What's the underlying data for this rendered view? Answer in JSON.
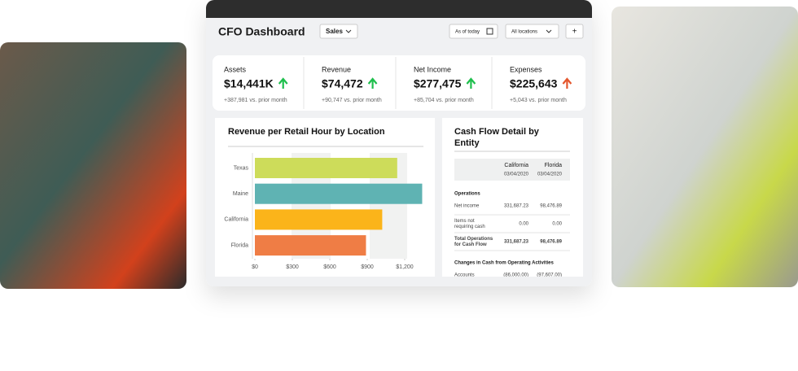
{
  "header": {
    "title": "CFO Dashboard",
    "filter": "Sales",
    "date": "As of today",
    "locations": "All locations",
    "add": "+"
  },
  "kpis": [
    {
      "label": "Assets",
      "value": "$14,441K",
      "change": "+387,981 vs. prior month"
    },
    {
      "label": "Revenue",
      "value": "$74,472",
      "change": "+90,747 vs. prior month"
    },
    {
      "label": "Net Income",
      "value": "$277,475",
      "change": "+85,704 vs. prior month"
    },
    {
      "label": "Expenses",
      "value": "$225,643",
      "change": "+5,043 vs. prior month"
    }
  ],
  "chart_data": {
    "type": "hbar",
    "title": "Revenue per Retail Hour by Location",
    "categories": [
      "Texas",
      "Maine",
      "California",
      "Florida"
    ],
    "values": [
      1140,
      1340,
      1020,
      890
    ],
    "colors": [
      "#cddc5a",
      "#5fb3b3",
      "#fbb41a",
      "#ef7d45"
    ],
    "xlim": [
      0,
      1350
    ],
    "xticks": [
      {
        "value": 0,
        "label": "$0"
      },
      {
        "value": 300,
        "label": "$300"
      },
      {
        "value": 600,
        "label": "$600"
      },
      {
        "value": 900,
        "label": "$900"
      },
      {
        "value": 1200,
        "label": "$1,200"
      }
    ]
  },
  "cash_flow": {
    "title": [
      "Cash Flow Detail by",
      "Entity"
    ],
    "columns": [
      [
        "California",
        "03/04/2020"
      ],
      [
        "Florida",
        "03/04/2020"
      ]
    ],
    "section1": "Operations",
    "rows": [
      [
        [
          "Net income"
        ],
        "331,687.23",
        "98,476.89"
      ],
      [
        [
          "Items not",
          "requiring cash"
        ],
        "0.00",
        "0.00"
      ],
      [
        [
          "Total Operations",
          "for Cash Flow"
        ],
        "331,687.23",
        "98,476.89"
      ]
    ],
    "section2": "Changes in Cash from Operating Activities",
    "row_last": [
      "Accounts",
      "(86,000.00)",
      "(97,607.00)"
    ]
  }
}
